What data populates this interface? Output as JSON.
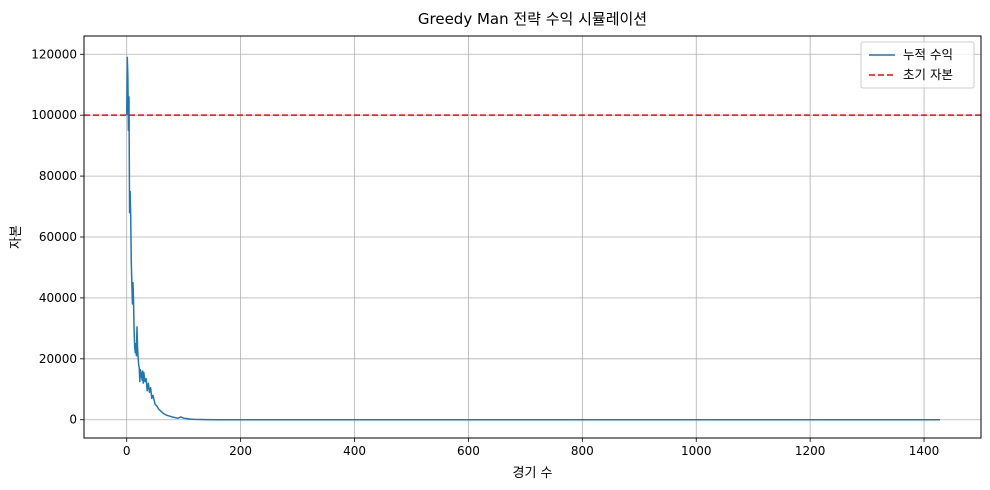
{
  "chart_data": {
    "type": "line",
    "title": "Greedy Man 전략 수익 시뮬레이션",
    "xlabel": "경기 수",
    "ylabel": "자본",
    "xlim": [
      -75,
      1500
    ],
    "ylim": [
      -6000,
      126000
    ],
    "xticks": [
      0,
      200,
      400,
      600,
      800,
      1000,
      1200,
      1400
    ],
    "yticks": [
      0,
      20000,
      40000,
      60000,
      80000,
      100000,
      120000
    ],
    "grid": true,
    "legend_position": "top-right",
    "series": [
      {
        "name": "누적 수익",
        "color": "#1f77b4",
        "style": "solid",
        "x": [
          0,
          1,
          2,
          3,
          4,
          5,
          6,
          7,
          8,
          9,
          10,
          11,
          12,
          13,
          14,
          15,
          16,
          17,
          18,
          19,
          20,
          21,
          22,
          23,
          24,
          25,
          26,
          27,
          28,
          29,
          30,
          32,
          34,
          36,
          38,
          40,
          42,
          44,
          46,
          48,
          50,
          53,
          56,
          60,
          65,
          70,
          75,
          80,
          85,
          90,
          95,
          100,
          105,
          110,
          115,
          120,
          130,
          140,
          160,
          200,
          300,
          500,
          800,
          1100,
          1400,
          1428
        ],
        "y": [
          100000,
          119000,
          113000,
          95000,
          106000,
          68000,
          75000,
          67000,
          52000,
          45000,
          38000,
          45000,
          39000,
          29000,
          24000,
          22000,
          25000,
          21000,
          30500,
          24000,
          20500,
          18000,
          17000,
          12500,
          16500,
          14000,
          15500,
          13000,
          16000,
          12000,
          15500,
          12500,
          13500,
          9500,
          12000,
          9000,
          10500,
          7000,
          8000,
          6500,
          5000,
          4500,
          3500,
          2800,
          2000,
          1500,
          1200,
          900,
          700,
          500,
          900,
          500,
          400,
          250,
          150,
          100,
          60,
          30,
          10,
          0,
          0,
          0,
          0,
          0,
          0,
          0
        ]
      },
      {
        "name": "초기 자본",
        "color": "#ff0000",
        "style": "dashed",
        "y": 100000
      }
    ]
  }
}
